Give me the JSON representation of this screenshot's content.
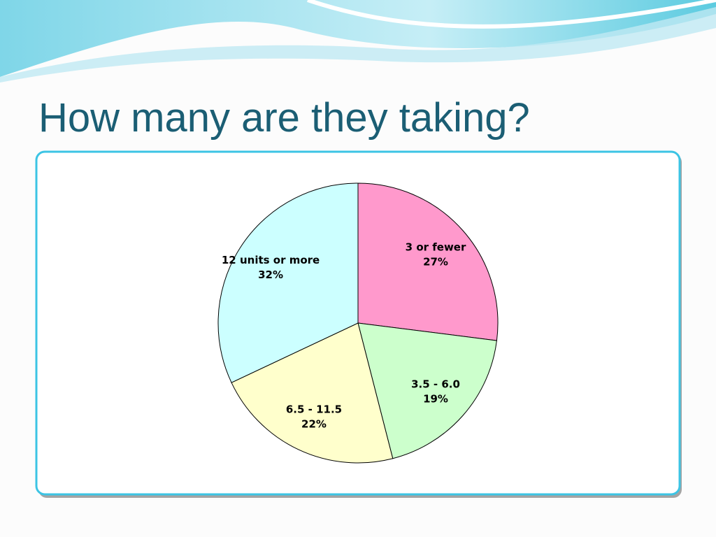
{
  "chart_data": {
    "type": "pie",
    "title": "How many are they taking?",
    "categories": [
      "3 or fewer",
      "3.5 - 6.0",
      "6.5 - 11.5",
      "12 units or more"
    ],
    "values": [
      27,
      19,
      22,
      32
    ],
    "value_labels": [
      "27%",
      "19%",
      "22%",
      "32%"
    ],
    "colors": [
      "#ff99cc",
      "#ccffcc",
      "#ffffcc",
      "#ccffff"
    ]
  }
}
